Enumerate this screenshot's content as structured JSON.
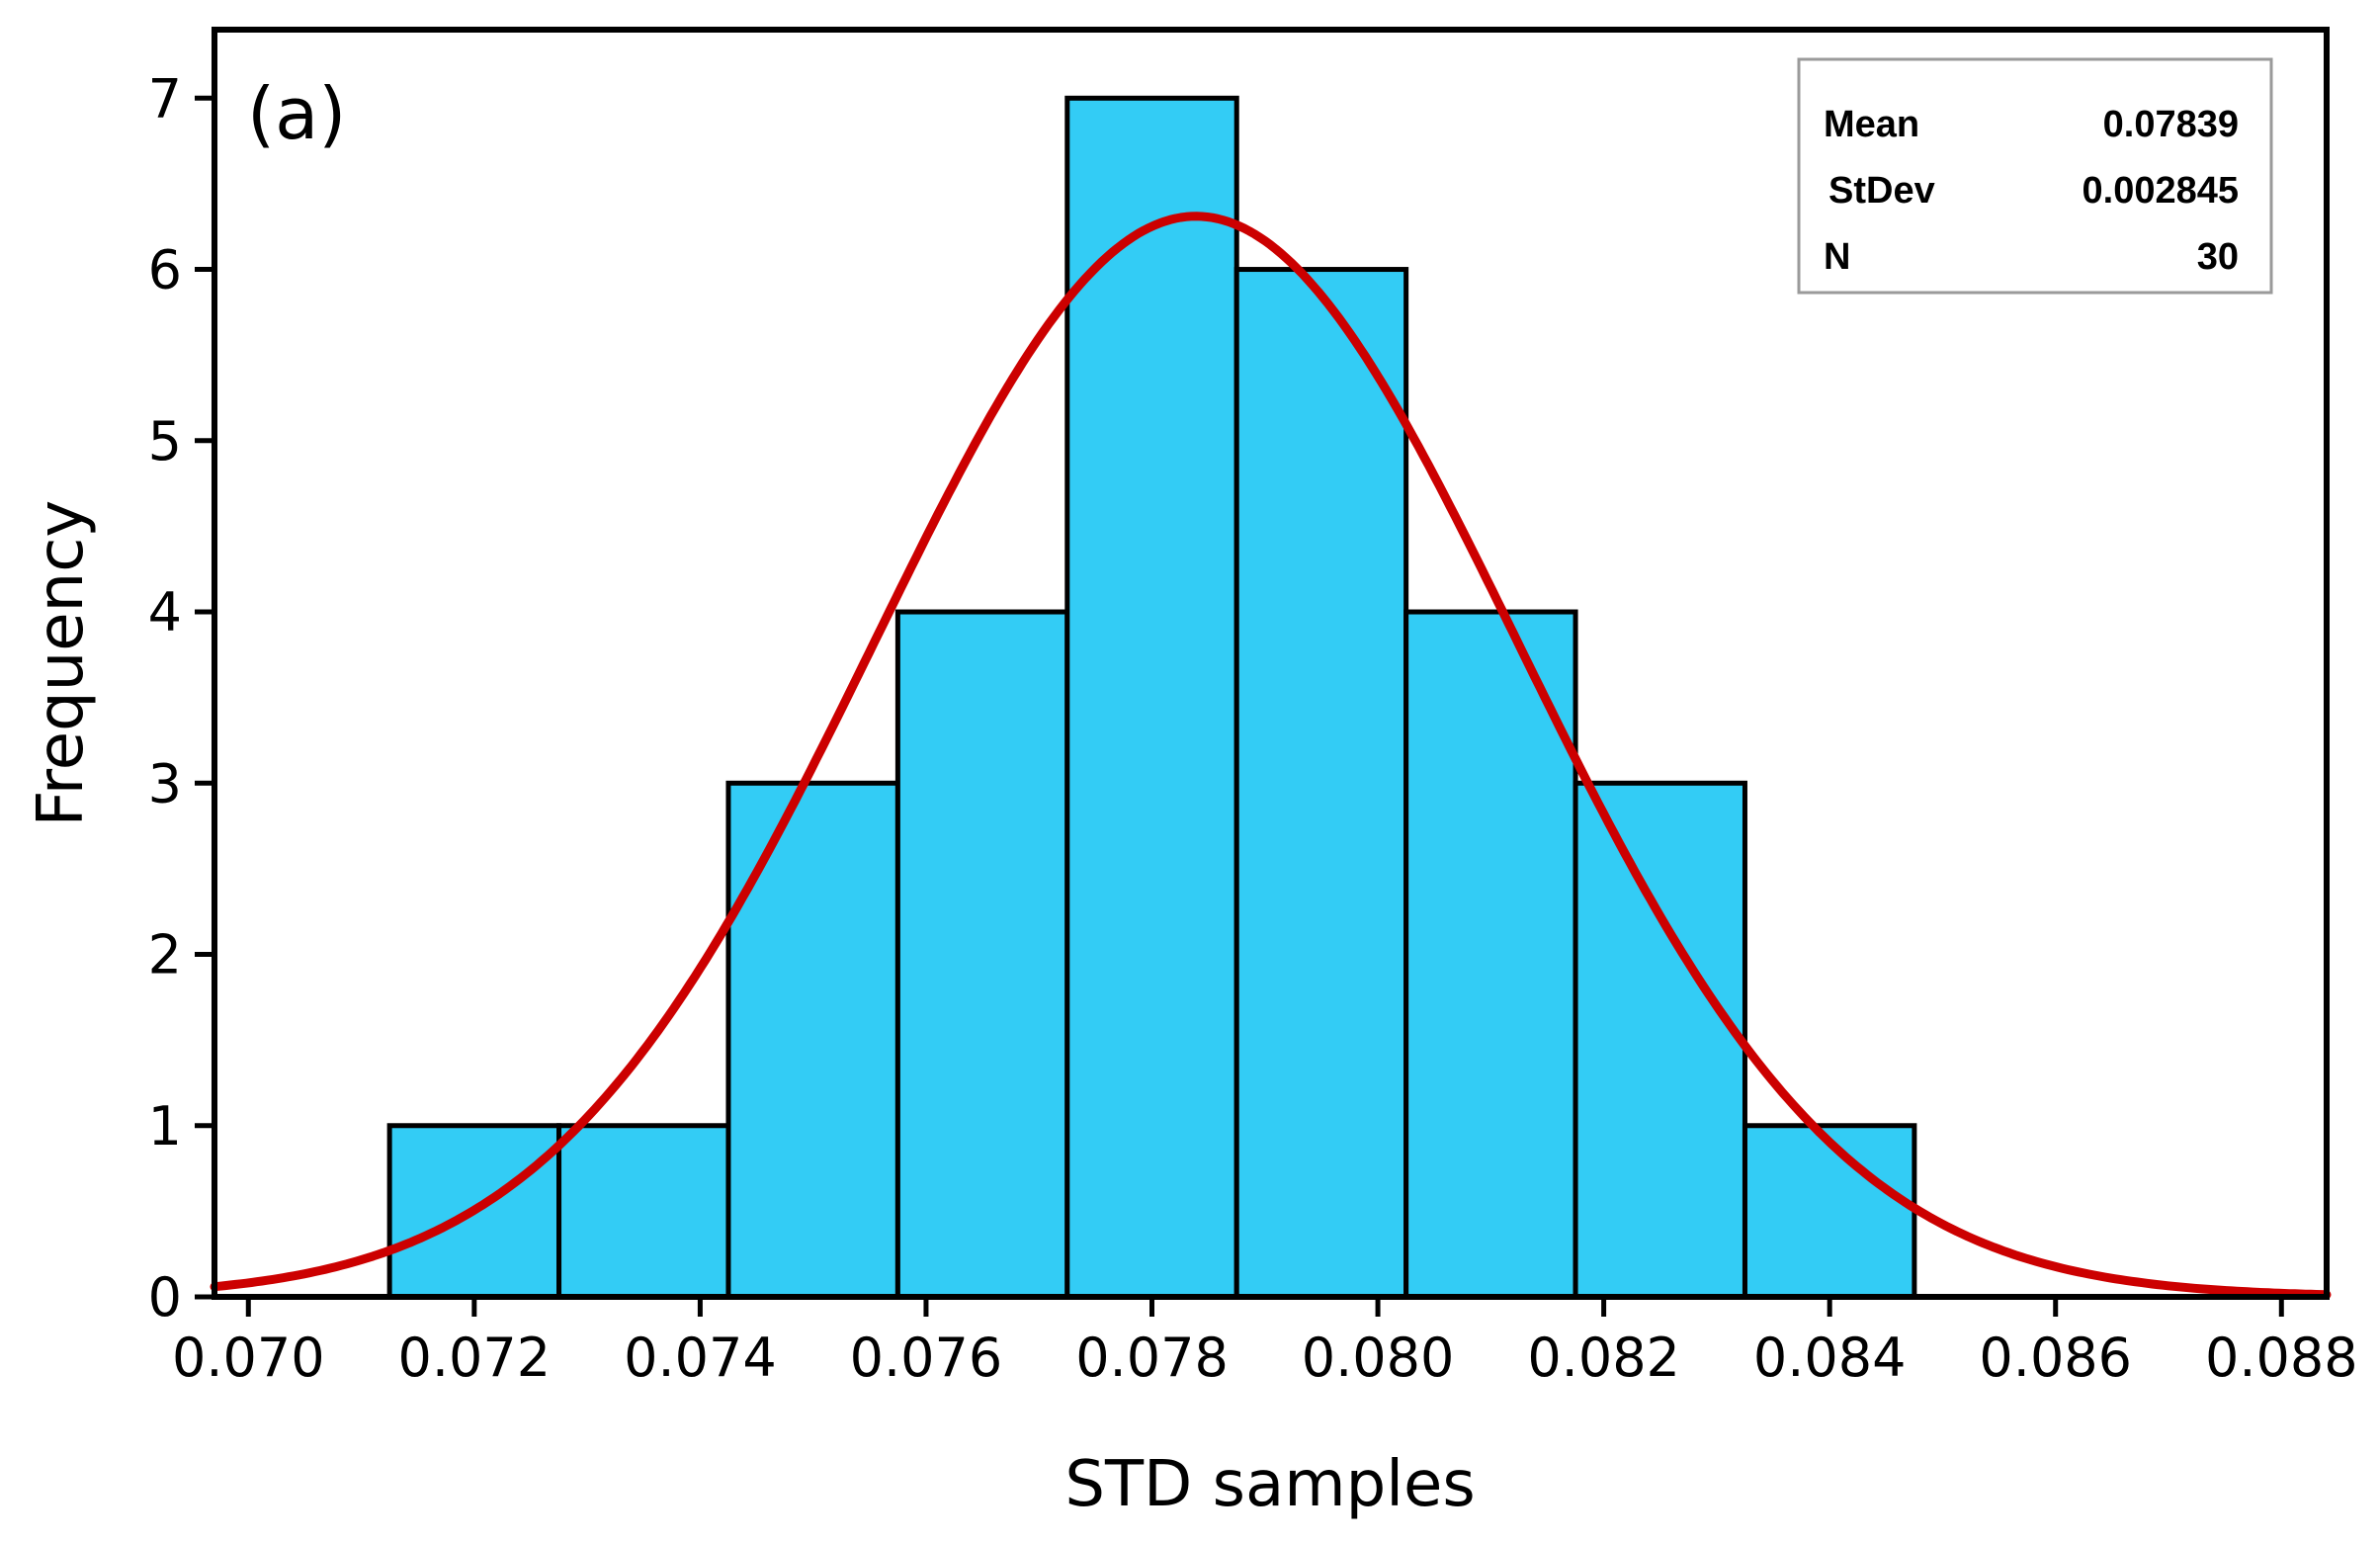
{
  "chart_data": {
    "type": "bar",
    "subtype": "histogram-with-normal-fit",
    "panel_label": "(a)",
    "xlabel": "STD samples",
    "ylabel": "Frequency",
    "xlim": [
      0.0697,
      0.0884
    ],
    "ylim": [
      0,
      7.4
    ],
    "xticks": [
      "0.070",
      "0.072",
      "0.074",
      "0.076",
      "0.078",
      "0.080",
      "0.082",
      "0.084",
      "0.086",
      "0.088"
    ],
    "xtick_values": [
      0.07,
      0.072,
      0.074,
      0.076,
      0.078,
      0.08,
      0.082,
      0.084,
      0.086,
      0.088
    ],
    "yticks": [
      "0",
      "1",
      "2",
      "3",
      "4",
      "5",
      "6",
      "7"
    ],
    "ytick_values": [
      0,
      1,
      2,
      3,
      4,
      5,
      6,
      7
    ],
    "bins": [
      {
        "x0": 0.07125,
        "x1": 0.07275,
        "count": 1
      },
      {
        "x0": 0.07275,
        "x1": 0.07425,
        "count": 1
      },
      {
        "x0": 0.07425,
        "x1": 0.07575,
        "count": 3
      },
      {
        "x0": 0.07575,
        "x1": 0.07725,
        "count": 4
      },
      {
        "x0": 0.07725,
        "x1": 0.07875,
        "count": 7
      },
      {
        "x0": 0.07875,
        "x1": 0.08025,
        "count": 6
      },
      {
        "x0": 0.08025,
        "x1": 0.08175,
        "count": 4
      },
      {
        "x0": 0.08175,
        "x1": 0.08325,
        "count": 3
      },
      {
        "x0": 0.08325,
        "x1": 0.08475,
        "count": 1
      }
    ],
    "bin_width": 0.0015,
    "fit": {
      "distribution": "normal",
      "mean": 0.07839,
      "stdev": 0.002845,
      "n": 30
    },
    "colors": {
      "bar_fill": "#33CCF5",
      "bar_edge": "#000000",
      "curve": "#CC0000"
    }
  },
  "stats_box": {
    "rows": [
      {
        "label": "Mean",
        "value": "0.07839"
      },
      {
        "label": "StDev",
        "value": "0.002845"
      },
      {
        "label": "N",
        "value": "30"
      }
    ]
  }
}
